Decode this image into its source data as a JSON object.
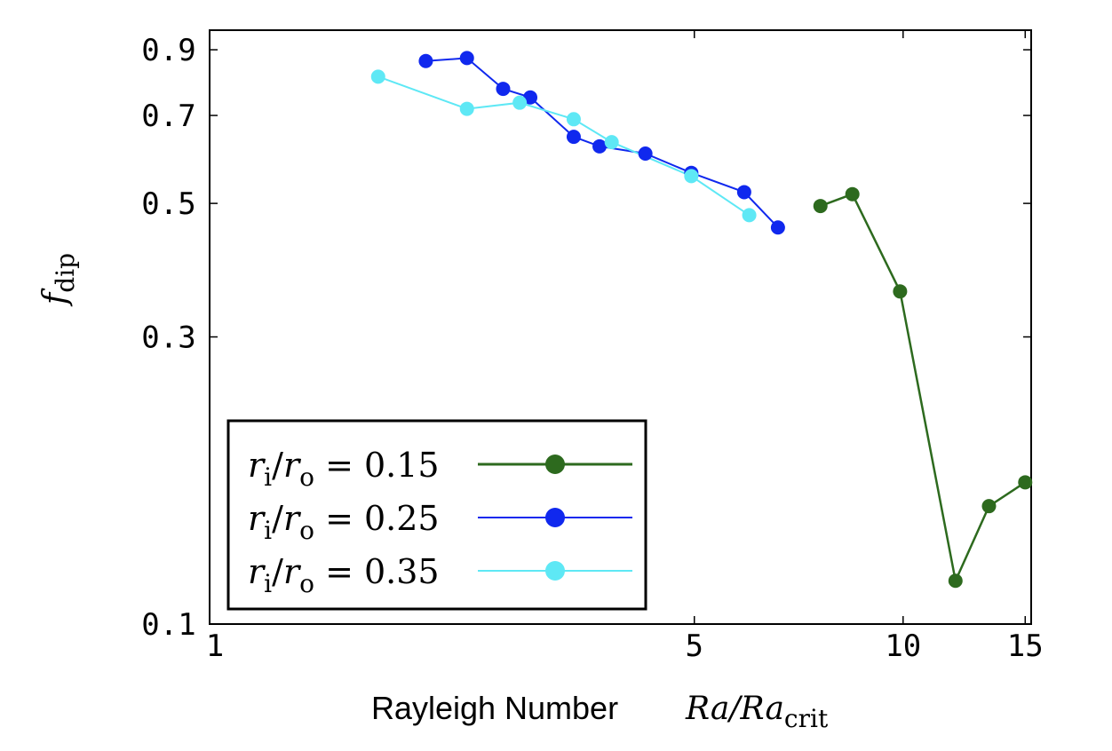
{
  "chart_data": {
    "type": "line",
    "x_scale": "log",
    "y_scale": "log",
    "xlim": [
      1,
      15.3
    ],
    "ylim": [
      0.1,
      0.97
    ],
    "x_ticks": [
      1,
      5,
      10,
      15
    ],
    "x_tick_labels": [
      "1",
      "5",
      "10",
      "15"
    ],
    "y_ticks": [
      0.1,
      0.3,
      0.5,
      0.7,
      0.9
    ],
    "y_tick_labels": [
      "0.1",
      "0.3",
      "0.5",
      "0.7",
      "0.9"
    ],
    "xlabel": {
      "text": "Rayleigh Number",
      "math": "Ra/Ra",
      "math_sub": "crit"
    },
    "ylabel": {
      "math": "f",
      "math_sub": "dip"
    },
    "legend_position": "bottom-left",
    "series": [
      {
        "name": "r_i/r_o = 0.15",
        "legend": {
          "r": "r",
          "sub_i": "i",
          "slash": "/",
          "sub_o": "o",
          "value": " = 0.15"
        },
        "color": "#2d6a1e",
        "x": [
          7.6,
          8.45,
          9.9,
          11.9,
          13.3,
          15.0
        ],
        "y": [
          0.495,
          0.518,
          0.357,
          0.118,
          0.157,
          0.172
        ]
      },
      {
        "name": "r_i/r_o = 0.25",
        "legend": {
          "r": "r",
          "sub_i": "i",
          "slash": "/",
          "sub_o": "o",
          "value": " = 0.25"
        },
        "color": "#1028ee",
        "x": [
          2.05,
          2.35,
          2.65,
          2.9,
          3.35,
          3.65,
          4.25,
          4.95,
          5.9,
          6.6
        ],
        "y": [
          0.862,
          0.872,
          0.775,
          0.75,
          0.645,
          0.622,
          0.605,
          0.562,
          0.522,
          0.456
        ]
      },
      {
        "name": "r_i/r_o = 0.35",
        "legend": {
          "r": "r",
          "sub_i": "i",
          "slash": "/",
          "sub_o": "o",
          "value": " = 0.35"
        },
        "color": "#5ee8f5",
        "x": [
          1.75,
          2.35,
          2.8,
          3.35,
          3.8,
          4.95,
          6.0
        ],
        "y": [
          0.812,
          0.718,
          0.735,
          0.69,
          0.632,
          0.555,
          0.478
        ]
      }
    ]
  }
}
